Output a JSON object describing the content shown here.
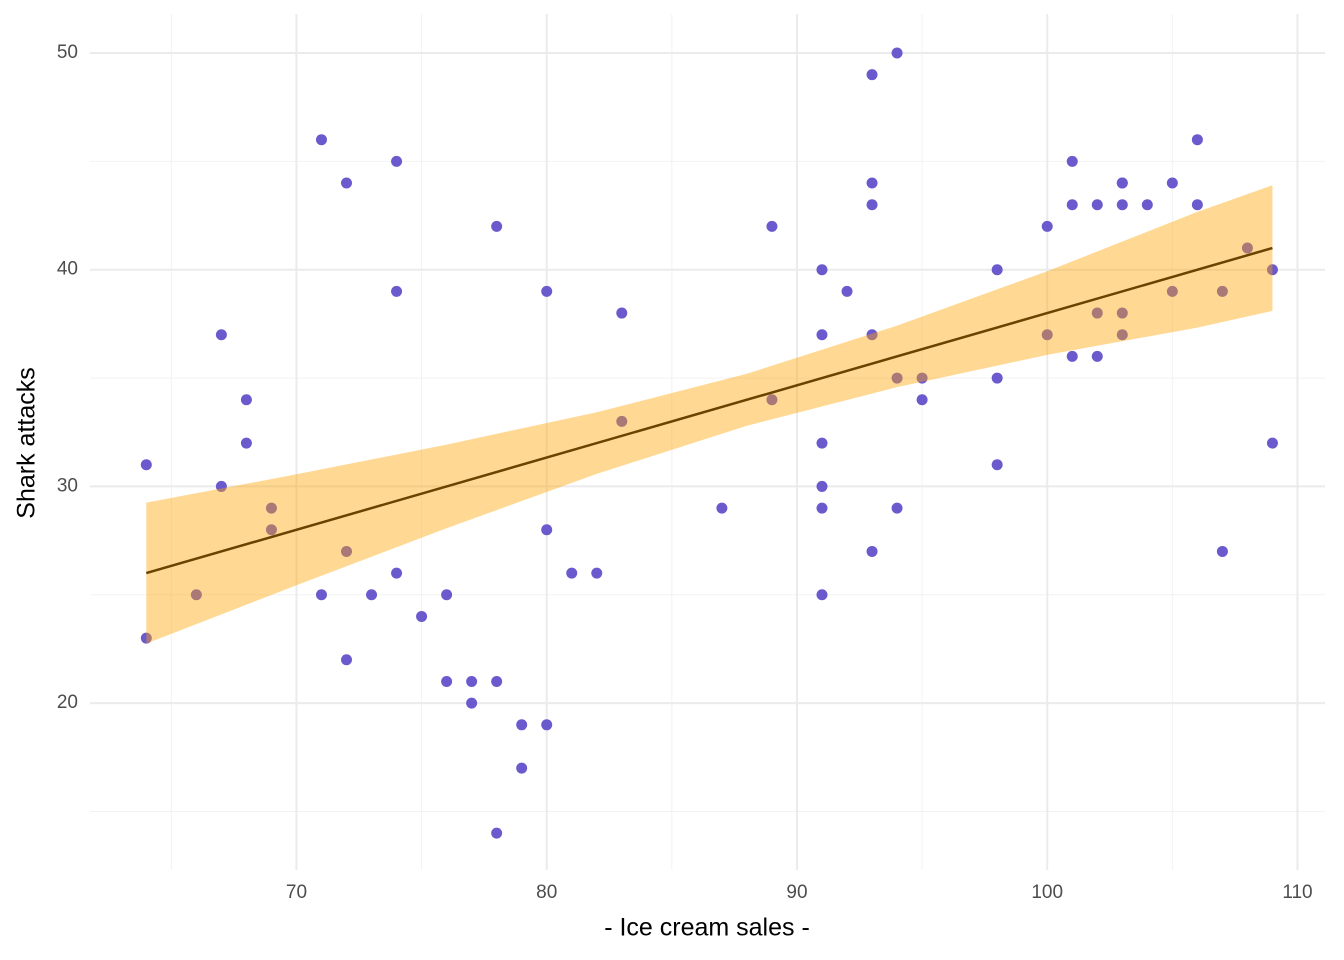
{
  "chart_data": {
    "type": "scatter",
    "xlabel": "- Ice cream sales -",
    "ylabel": "Shark attacks",
    "xlim": [
      61.75,
      111.1
    ],
    "ylim": [
      12.3,
      51.8
    ],
    "xticks": [
      70,
      80,
      90,
      100,
      110
    ],
    "yticks": [
      20,
      30,
      40,
      50
    ],
    "xminor": [
      65,
      75,
      85,
      95,
      105
    ],
    "yminor": [
      15,
      25,
      35,
      45
    ],
    "grid": true,
    "point_color": "#6A5ACD",
    "x": [
      64,
      64,
      66,
      67,
      67,
      68,
      68,
      69,
      69,
      71,
      71,
      72,
      72,
      72,
      73,
      74,
      74,
      74,
      75,
      76,
      76,
      77,
      77,
      78,
      78,
      78,
      79,
      79,
      80,
      80,
      80,
      81,
      82,
      83,
      83,
      87,
      89,
      89,
      91,
      91,
      91,
      91,
      91,
      91,
      92,
      93,
      93,
      93,
      93,
      93,
      94,
      94,
      94,
      95,
      95,
      98,
      98,
      98,
      100,
      100,
      101,
      101,
      101,
      102,
      102,
      102,
      103,
      103,
      103,
      103,
      103,
      104,
      105,
      105,
      106,
      106,
      107,
      107,
      108,
      109,
      109
    ],
    "y": [
      31,
      23,
      25,
      37,
      30,
      34,
      32,
      29,
      28,
      46,
      25,
      44,
      27,
      22,
      25,
      45,
      39,
      26,
      24,
      25,
      21,
      21,
      20,
      42,
      21,
      14,
      19,
      17,
      39,
      28,
      19,
      26,
      26,
      38,
      33,
      29,
      42,
      34,
      40,
      37,
      32,
      30,
      29,
      25,
      39,
      49,
      44,
      43,
      37,
      27,
      50,
      35,
      29,
      35,
      34,
      40,
      35,
      31,
      42,
      37,
      45,
      43,
      36,
      43,
      38,
      36,
      44,
      44,
      43,
      38,
      37,
      43,
      44,
      39,
      46,
      43,
      39,
      27,
      41,
      40,
      32
    ],
    "fit": {
      "color": "#6B4300",
      "x": [
        64,
        109
      ],
      "y": [
        26,
        41
      ]
    },
    "band": {
      "color": "#FFA500",
      "x": [
        64,
        70,
        76,
        82,
        88,
        94,
        100,
        106,
        109
      ],
      "lower": [
        22.75,
        25.44,
        28.07,
        30.58,
        32.8,
        34.58,
        36.07,
        37.33,
        38.1
      ],
      "upper": [
        29.25,
        30.56,
        31.93,
        33.42,
        35.2,
        37.42,
        39.93,
        42.67,
        43.9
      ]
    }
  }
}
